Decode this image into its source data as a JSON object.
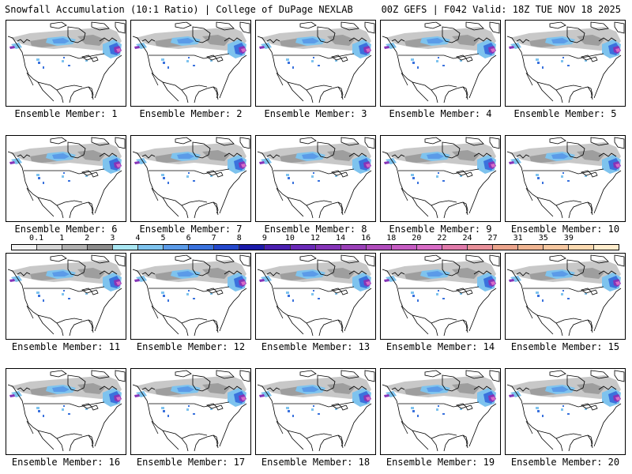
{
  "header": {
    "title_left": "Snowfall Accumulation (10:1 Ratio) | College of DuPage NEXLAB",
    "title_right": "00Z GEFS | F042 Valid: 18Z TUE NOV 18 2025"
  },
  "panels": [
    {
      "label": "Ensemble Member: 1"
    },
    {
      "label": "Ensemble Member: 2"
    },
    {
      "label": "Ensemble Member: 3"
    },
    {
      "label": "Ensemble Member: 4"
    },
    {
      "label": "Ensemble Member: 5"
    },
    {
      "label": "Ensemble Member: 6"
    },
    {
      "label": "Ensemble Member: 7"
    },
    {
      "label": "Ensemble Member: 8"
    },
    {
      "label": "Ensemble Member: 9"
    },
    {
      "label": "Ensemble Member: 10"
    },
    {
      "label": "Ensemble Member: 11"
    },
    {
      "label": "Ensemble Member: 12"
    },
    {
      "label": "Ensemble Member: 13"
    },
    {
      "label": "Ensemble Member: 14"
    },
    {
      "label": "Ensemble Member: 15"
    },
    {
      "label": "Ensemble Member: 16"
    },
    {
      "label": "Ensemble Member: 17"
    },
    {
      "label": "Ensemble Member: 18"
    },
    {
      "label": "Ensemble Member: 19"
    },
    {
      "label": "Ensemble Member: 20"
    }
  ],
  "colorbar": {
    "labels": [
      "0.1",
      "1",
      "2",
      "3",
      "4",
      "5",
      "6",
      "7",
      "8",
      "9",
      "10",
      "12",
      "14",
      "16",
      "18",
      "20",
      "22",
      "24",
      "27",
      "31",
      "35",
      "39"
    ],
    "colors": [
      "#f2f2f2",
      "#d6d6d6",
      "#b0b0b0",
      "#8c8c8c",
      "#a9e6f2",
      "#7ec3ee",
      "#5b9be8",
      "#3a72dd",
      "#2448cc",
      "#1a1aaa",
      "#4a1fb0",
      "#6a2ab8",
      "#8534b8",
      "#9a40b8",
      "#b04cbc",
      "#c55cc2",
      "#d86cc6",
      "#e07aaa",
      "#e8909a",
      "#eba48c",
      "#efb592",
      "#f5c7a0",
      "#fbd9b0",
      "#ffeccc"
    ]
  }
}
